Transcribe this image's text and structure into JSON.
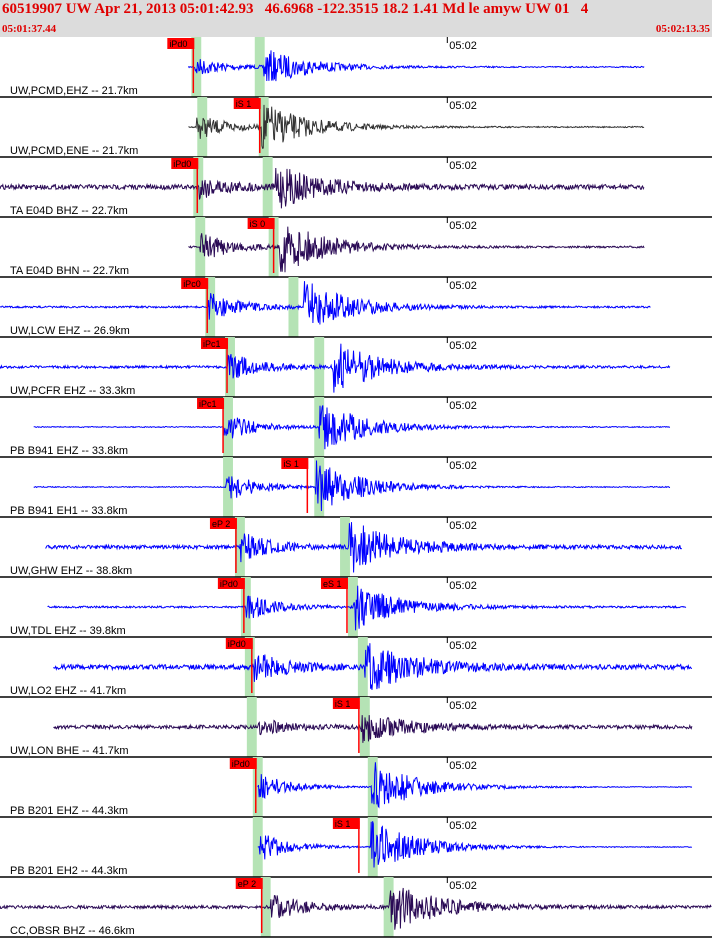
{
  "header": {
    "title": "60519907 UW Apr 21, 2013 05:01:42.93   46.6968 -122.3515 18.2 1.41 Md le amyw UW 01   4",
    "start_time": "05:01:37.44",
    "end_time": "05:02:13.35"
  },
  "chart_data": {
    "type": "line",
    "title": "60519907 UW Apr 21, 2013 05:01:42.93   46.6968 -122.3515 18.2 1.41 Md le amyw UW 01   4",
    "x_unit": "seconds after 05:01:37.44",
    "xlim": [
      0,
      35.91
    ],
    "time_tick": {
      "label": "05:02",
      "t": 22.56
    },
    "colors": {
      "blue": "#0000ff",
      "dark": "#2a0a55",
      "gray": "#333333",
      "pick": "#ff0000",
      "window": "#b5e3b5",
      "grid": "#000000"
    },
    "traces": [
      {
        "label": "UW,PCMD,EHZ -- 21.7km",
        "color": "blue",
        "start": 9.5,
        "end": 32.5,
        "p_time": 9.8,
        "s_time": 13.3,
        "amp": 0.3,
        "noise": 0.01,
        "picks": [
          {
            "label": "iPd0",
            "t": 9.75
          }
        ],
        "windows": [
          {
            "t": 9.9,
            "w": 0.5
          },
          {
            "t": 13.1,
            "w": 0.5
          }
        ]
      },
      {
        "label": "UW,PCMD,ENE -- 21.7km",
        "color": "gray",
        "start": 9.5,
        "end": 32.5,
        "p_time": 9.9,
        "s_time": 13.2,
        "amp": 0.4,
        "noise": 0.01,
        "picks": [
          {
            "label": "iS 1",
            "t": 13.1
          }
        ],
        "windows": [
          {
            "t": 10.2,
            "w": 0.5
          },
          {
            "t": 13.3,
            "w": 0.5
          }
        ]
      },
      {
        "label": "TA E04D BHZ -- 22.7km",
        "color": "dark",
        "start": 0,
        "end": 32.5,
        "p_time": 10.0,
        "s_time": 13.9,
        "amp": 0.35,
        "noise": 0.04,
        "picks": [
          {
            "label": "iPd0",
            "t": 9.95
          }
        ],
        "windows": [
          {
            "t": 10.0,
            "w": 0.5
          },
          {
            "t": 13.5,
            "w": 0.5
          }
        ]
      },
      {
        "label": "TA E04D BHN -- 22.7km",
        "color": "dark",
        "start": 9.5,
        "end": 32.5,
        "p_time": 10.1,
        "s_time": 14.1,
        "amp": 0.45,
        "noise": 0.015,
        "picks": [
          {
            "label": "iS 0",
            "t": 13.8
          }
        ],
        "windows": [
          {
            "t": 10.1,
            "w": 0.5
          },
          {
            "t": 13.8,
            "w": 0.5
          }
        ]
      },
      {
        "label": "UW,LCW EHZ -- 26.9km",
        "color": "blue",
        "start": 0,
        "end": 32.8,
        "p_time": 10.5,
        "s_time": 15.3,
        "amp": 0.45,
        "noise": 0.015,
        "picks": [
          {
            "label": "iPc0",
            "t": 10.45
          }
        ],
        "windows": [
          {
            "t": 10.6,
            "w": 0.5
          },
          {
            "t": 14.8,
            "w": 0.5
          }
        ]
      },
      {
        "label": "UW,PCFR EHZ -- 33.3km",
        "color": "blue",
        "start": 0,
        "end": 33.8,
        "p_time": 11.5,
        "s_time": 16.8,
        "amp": 0.45,
        "noise": 0.02,
        "picks": [
          {
            "label": "iPc1",
            "t": 11.45
          }
        ],
        "windows": [
          {
            "t": 11.6,
            "w": 0.5
          },
          {
            "t": 16.1,
            "w": 0.5
          }
        ]
      },
      {
        "label": "PB B941 EHZ -- 33.8km",
        "color": "blue",
        "start": 1.7,
        "end": 33.8,
        "p_time": 11.3,
        "s_time": 16.1,
        "amp": 0.45,
        "noise": 0.008,
        "picks": [
          {
            "label": "iPc1",
            "t": 11.25
          }
        ],
        "windows": [
          {
            "t": 11.5,
            "w": 0.5
          },
          {
            "t": 16.1,
            "w": 0.5
          }
        ]
      },
      {
        "label": "PB B941 EH1 -- 33.8km",
        "color": "blue",
        "start": 1.7,
        "end": 33.8,
        "p_time": 11.4,
        "s_time": 15.9,
        "amp": 0.45,
        "noise": 0.008,
        "picks": [
          {
            "label": "iS 1",
            "t": 15.5
          }
        ],
        "windows": [
          {
            "t": 11.5,
            "w": 0.5
          },
          {
            "t": 16.1,
            "w": 0.5
          }
        ]
      },
      {
        "label": "UW,GHW EHZ -- 38.8km",
        "color": "blue",
        "start": 2.3,
        "end": 34.4,
        "p_time": 12.1,
        "s_time": 17.6,
        "amp": 0.45,
        "noise": 0.03,
        "picks": [
          {
            "label": "eP 2",
            "t": 11.9
          }
        ],
        "windows": [
          {
            "t": 12.1,
            "w": 0.5
          },
          {
            "t": 17.4,
            "w": 0.5
          }
        ]
      },
      {
        "label": "UW,TDL EHZ -- 39.8km",
        "color": "blue",
        "start": 2.4,
        "end": 34.6,
        "p_time": 12.4,
        "s_time": 17.8,
        "amp": 0.4,
        "noise": 0.015,
        "picks": [
          {
            "label": "iPd0",
            "t": 12.3
          },
          {
            "label": "eS 1",
            "t": 17.5
          }
        ],
        "windows": [
          {
            "t": 12.4,
            "w": 0.5
          },
          {
            "t": 17.8,
            "w": 0.5
          }
        ]
      },
      {
        "label": "UW,LO2 EHZ -- 41.7km",
        "color": "blue",
        "start": 2.7,
        "end": 34.9,
        "p_time": 12.8,
        "s_time": 18.4,
        "amp": 0.45,
        "noise": 0.04,
        "picks": [
          {
            "label": "iPd0",
            "t": 12.7
          }
        ],
        "windows": [
          {
            "t": 12.6,
            "w": 0.5
          },
          {
            "t": 18.3,
            "w": 0.5
          }
        ]
      },
      {
        "label": "UW,LON BHE -- 41.7km",
        "color": "dark",
        "start": 2.7,
        "end": 34.9,
        "p_time": 13.0,
        "s_time": 18.2,
        "amp": 0.25,
        "noise": 0.03,
        "picks": [
          {
            "label": "iS 1",
            "t": 18.1
          }
        ],
        "windows": [
          {
            "t": 12.7,
            "w": 0.5
          },
          {
            "t": 18.4,
            "w": 0.5
          }
        ]
      },
      {
        "label": "PB B201 EHZ -- 44.3km",
        "color": "blue",
        "start": 13.0,
        "end": 34.9,
        "p_time": 13.0,
        "s_time": 18.7,
        "amp": 0.45,
        "noise": 0.006,
        "picks": [
          {
            "label": "iPd0",
            "t": 12.9
          }
        ],
        "windows": [
          {
            "t": 13.0,
            "w": 0.5
          },
          {
            "t": 18.8,
            "w": 0.5
          }
        ]
      },
      {
        "label": "PB B201 EH2 -- 44.3km",
        "color": "blue",
        "start": 13.0,
        "end": 34.9,
        "p_time": 13.1,
        "s_time": 18.7,
        "amp": 0.45,
        "noise": 0.006,
        "picks": [
          {
            "label": "iS 1",
            "t": 18.1
          }
        ],
        "windows": [
          {
            "t": 13.0,
            "w": 0.5
          },
          {
            "t": 18.8,
            "w": 0.5
          }
        ]
      },
      {
        "label": "CC,OBSR BHZ -- 46.6km",
        "color": "dark",
        "start": 0,
        "end": 35.9,
        "p_time": 13.6,
        "s_time": 19.6,
        "amp": 0.45,
        "noise": 0.025,
        "picks": [
          {
            "label": "eP 2",
            "t": 13.2
          }
        ],
        "windows": [
          {
            "t": 13.4,
            "w": 0.5
          },
          {
            "t": 19.6,
            "w": 0.5
          }
        ]
      }
    ]
  }
}
